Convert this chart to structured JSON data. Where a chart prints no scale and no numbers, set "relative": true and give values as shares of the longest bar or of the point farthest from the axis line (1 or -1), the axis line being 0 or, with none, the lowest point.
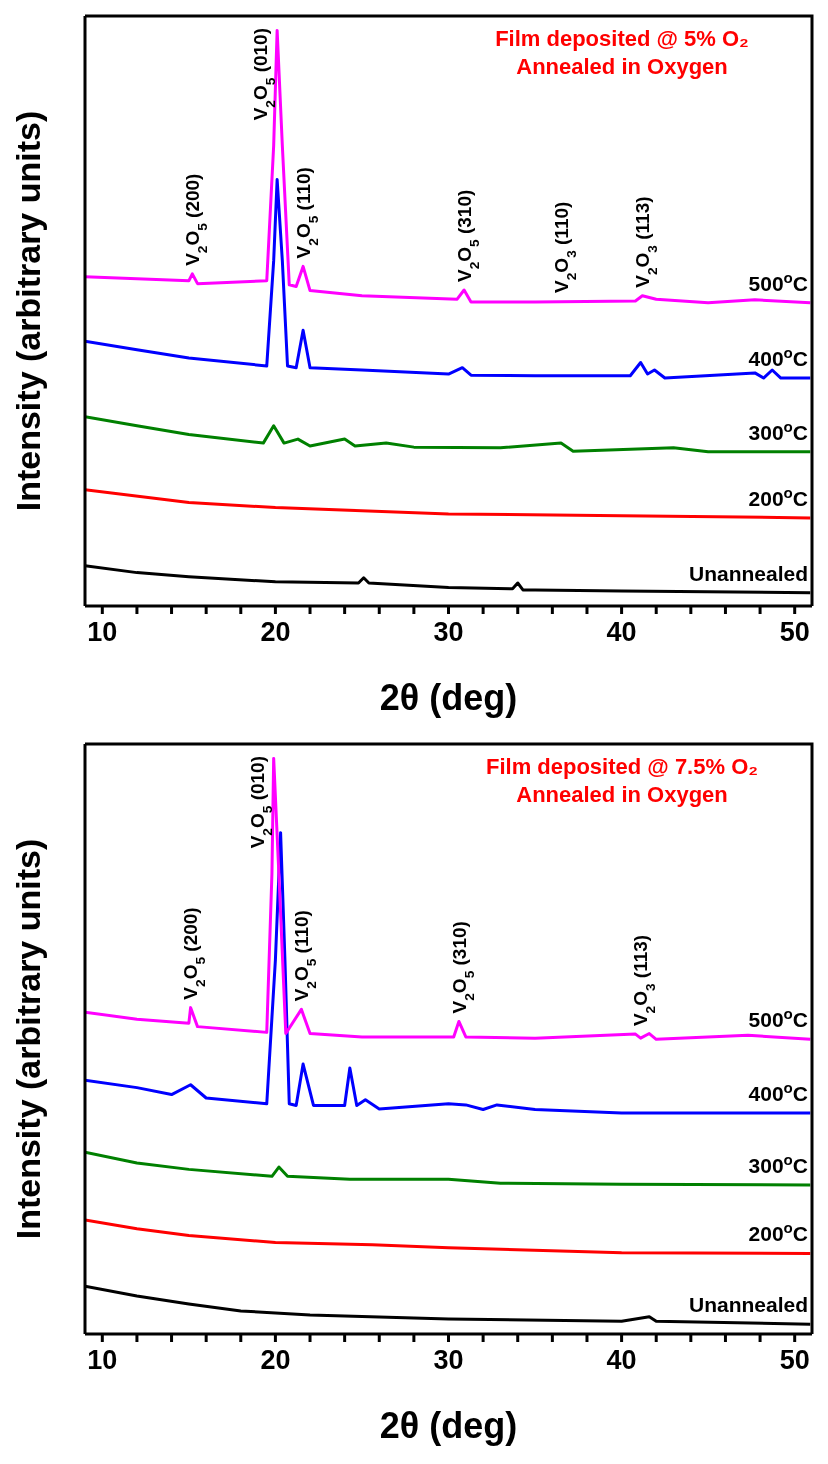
{
  "chart_data": [
    {
      "type": "line",
      "relative": true,
      "title": "Film deposited @ 5% O₂",
      "subtitle": "Annealed in Oxygen",
      "xlabel": "2θ (deg)",
      "ylabel": "Intensity (arbitrary units)",
      "xlim": [
        9,
        51
      ],
      "xticks": [
        10,
        {
          "value": 12,
          "label": null
        },
        {
          "value": 14,
          "label": null
        },
        {
          "value": 16,
          "label": null
        },
        {
          "value": 18,
          "label": null
        },
        20,
        {
          "value": 22,
          "label": null
        },
        {
          "value": 24,
          "label": null
        },
        {
          "value": 26,
          "label": null
        },
        {
          "value": 28,
          "label": null
        },
        30,
        {
          "value": 32,
          "label": null
        },
        {
          "value": 34,
          "label": null
        },
        {
          "value": 36,
          "label": null
        },
        {
          "value": 38,
          "label": null
        },
        40,
        {
          "value": 42,
          "label": null
        },
        {
          "value": 44,
          "label": null
        },
        {
          "value": 46,
          "label": null
        },
        {
          "value": 48,
          "label": null
        },
        50
      ],
      "series": [
        {
          "name": "Unannealed",
          "color": "#000000",
          "x": [
            9,
            12,
            15,
            20,
            24.8,
            25.1,
            25.4,
            30,
            33.7,
            34,
            34.3,
            35,
            40,
            50.9
          ],
          "values": [
            0.07,
            0.058,
            0.051,
            0.042,
            0.04,
            0.049,
            0.04,
            0.032,
            0.03,
            0.04,
            0.028,
            0.028,
            0.026,
            0.023
          ]
        },
        {
          "name": "200$^{o}$C",
          "color": "#ff0000",
          "x": [
            9,
            15,
            20,
            30,
            40,
            50.9
          ],
          "values": [
            0.202,
            0.18,
            0.171,
            0.16,
            0.157,
            0.153
          ]
        },
        {
          "name": "300$^{o}$C",
          "color": "#008000",
          "x": [
            9,
            12,
            15,
            19.3,
            19.9,
            20.5,
            21.3,
            22,
            24,
            24.6,
            26.4,
            28,
            33,
            36.5,
            37.2,
            43,
            45,
            50.9
          ],
          "values": [
            0.329,
            0.313,
            0.298,
            0.283,
            0.313,
            0.283,
            0.29,
            0.278,
            0.29,
            0.278,
            0.283,
            0.276,
            0.275,
            0.283,
            0.269,
            0.275,
            0.268,
            0.268
          ]
        },
        {
          "name": "400$^{o}$C",
          "color": "#0000ff",
          "x": [
            9,
            12,
            15,
            19.5,
            19.9,
            20.1,
            20.4,
            20.7,
            21.2,
            21.6,
            22,
            25,
            30,
            30.8,
            31.3,
            35,
            40.5,
            41.1,
            41.5,
            41.9,
            42.5,
            47.7,
            48.2,
            48.7,
            49.2,
            50.9
          ],
          "values": [
            0.46,
            0.445,
            0.431,
            0.417,
            0.6,
            0.741,
            0.6,
            0.417,
            0.414,
            0.479,
            0.414,
            0.41,
            0.403,
            0.414,
            0.401,
            0.4,
            0.4,
            0.423,
            0.403,
            0.41,
            0.396,
            0.405,
            0.396,
            0.41,
            0.396,
            0.396
          ]
        },
        {
          "name": "500$^{o}$C",
          "color": "#ff00ff",
          "x": [
            9,
            15,
            15.2,
            15.5,
            19.5,
            19.9,
            20.1,
            20.4,
            20.8,
            21.2,
            21.6,
            22,
            25,
            30.5,
            30.9,
            31.3,
            35,
            40.8,
            41.2,
            42,
            45,
            47.7,
            50.9
          ],
          "values": [
            0.572,
            0.565,
            0.577,
            0.56,
            0.565,
            0.8,
            1.0,
            0.8,
            0.558,
            0.555,
            0.59,
            0.548,
            0.539,
            0.533,
            0.549,
            0.528,
            0.528,
            0.53,
            0.539,
            0.533,
            0.527,
            0.532,
            0.527
          ]
        }
      ],
      "annotations": [
        {
          "text": "V$_{2}$O$_{5}$ (200)",
          "x": 15.2,
          "y": 0.577
        },
        {
          "text": "V$_{2}$O$_{5}$ (010)",
          "x": 20.1,
          "y": 1.0
        },
        {
          "text": "V$_{2}$O$_{5}$ (110)",
          "x": 21.6,
          "y": 0.59
        },
        {
          "text": "V$_{2}$O$_{5}$ (310)",
          "x": 30.9,
          "y": 0.549
        },
        {
          "text": "V$_{2}$O$_{3}$ (110)",
          "x": 36.5,
          "y": 0.53
        },
        {
          "text": "V$_{2}$O$_{3}$ (113)",
          "x": 41.2,
          "y": 0.539
        }
      ]
    },
    {
      "type": "line",
      "relative": true,
      "title": "Film deposited @ 7.5% O₂",
      "subtitle": "Annealed in Oxygen",
      "xlabel": "2θ (deg)",
      "ylabel": "Intensity (arbitrary units)",
      "xlim": [
        9,
        51
      ],
      "xticks": [
        10,
        {
          "value": 12,
          "label": null
        },
        {
          "value": 14,
          "label": null
        },
        {
          "value": 16,
          "label": null
        },
        {
          "value": 18,
          "label": null
        },
        20,
        {
          "value": 22,
          "label": null
        },
        {
          "value": 24,
          "label": null
        },
        {
          "value": 26,
          "label": null
        },
        {
          "value": 28,
          "label": null
        },
        30,
        {
          "value": 32,
          "label": null
        },
        {
          "value": 34,
          "label": null
        },
        {
          "value": 36,
          "label": null
        },
        {
          "value": 38,
          "label": null
        },
        40,
        {
          "value": 42,
          "label": null
        },
        {
          "value": 44,
          "label": null
        },
        {
          "value": 46,
          "label": null
        },
        {
          "value": 48,
          "label": null
        },
        50
      ],
      "series": [
        {
          "name": "Unannealed",
          "color": "#000000",
          "x": [
            9,
            12,
            15,
            18,
            22,
            30,
            40,
            41.6,
            42,
            50.9
          ],
          "values": [
            0.083,
            0.066,
            0.052,
            0.04,
            0.033,
            0.026,
            0.022,
            0.03,
            0.022,
            0.017
          ]
        },
        {
          "name": "200$^{o}$C",
          "color": "#ff0000",
          "x": [
            9,
            12,
            15,
            20,
            25.6,
            30,
            40,
            50.9
          ],
          "values": [
            0.198,
            0.183,
            0.171,
            0.159,
            0.155,
            0.15,
            0.141,
            0.14
          ]
        },
        {
          "name": "300$^{o}$C",
          "color": "#008000",
          "x": [
            9,
            12,
            15,
            19.8,
            20.2,
            20.7,
            24.3,
            30,
            33,
            40,
            50.9
          ],
          "values": [
            0.316,
            0.297,
            0.286,
            0.274,
            0.29,
            0.274,
            0.269,
            0.269,
            0.262,
            0.26,
            0.259
          ]
        },
        {
          "name": "400$^{o}$C",
          "color": "#0000ff",
          "x": [
            9,
            12,
            14,
            15.1,
            16,
            19.5,
            20.0,
            20.3,
            20.55,
            20.8,
            21.2,
            21.6,
            22.2,
            24,
            24.3,
            24.7,
            25.2,
            26,
            30,
            31,
            32,
            32.8,
            35,
            40,
            50.9
          ],
          "values": [
            0.441,
            0.428,
            0.416,
            0.433,
            0.41,
            0.4,
            0.65,
            0.871,
            0.65,
            0.4,
            0.397,
            0.469,
            0.397,
            0.397,
            0.462,
            0.397,
            0.407,
            0.391,
            0.4,
            0.398,
            0.39,
            0.398,
            0.39,
            0.384,
            0.384
          ]
        },
        {
          "name": "500$^{o}$C",
          "color": "#ff00ff",
          "x": [
            9,
            12,
            15,
            15.1,
            15.5,
            19.5,
            19.8,
            19.9,
            20.2,
            20.6,
            21.5,
            22,
            25,
            30.3,
            30.6,
            31,
            35,
            40.8,
            41.1,
            41.6,
            42,
            47.3,
            50.9
          ],
          "values": [
            0.559,
            0.547,
            0.54,
            0.567,
            0.534,
            0.524,
            0.8,
            1.0,
            0.8,
            0.522,
            0.564,
            0.522,
            0.516,
            0.516,
            0.543,
            0.516,
            0.514,
            0.521,
            0.514,
            0.522,
            0.512,
            0.519,
            0.512
          ]
        }
      ],
      "annotations": [
        {
          "text": "V$_{2}$O$_{5}$ (200)",
          "x": 15.1,
          "y": 0.567
        },
        {
          "text": "V$_{2}$O$_{5}$ (010)",
          "x": 19.9,
          "y": 1.0
        },
        {
          "text": "V$_{2}$O$_{5}$ (110)",
          "x": 21.5,
          "y": 0.564
        },
        {
          "text": "V$_{2}$O$_{5}$ (310)",
          "x": 30.6,
          "y": 0.543
        },
        {
          "text": "V$_{2}$O$_{3}$ (113)",
          "x": 41.1,
          "y": 0.521
        }
      ]
    }
  ]
}
